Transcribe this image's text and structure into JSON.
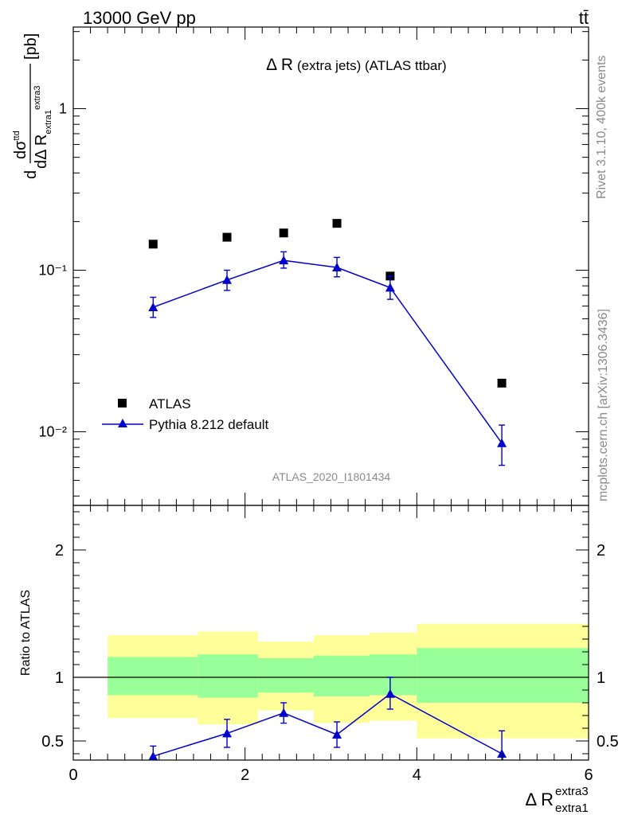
{
  "header": {
    "energy_label": "13000 GeV pp",
    "process_label": "tt̄",
    "rivet_label": "Rivet 3.1.10,  400k events",
    "mcplots_label": "mcplots.cern.ch [arXiv:1306.3436]",
    "analysis_id": "ATLAS_2020_I1801434"
  },
  "chart_data": [
    {
      "type": "scatter",
      "panel": "main",
      "title_main": "Δ R",
      "title_sub": "(extra jets) (ATLAS ttbar)",
      "ylabel": "dσ/dΔ R extra1 extra3 [pb]",
      "yscale": "log",
      "xlim": [
        0,
        6
      ],
      "ylim": [
        0.0035,
        3.2
      ],
      "y_tick_labels": [
        "10⁻²",
        "10⁻¹",
        "1"
      ],
      "legend_position": "bottom-left",
      "series": [
        {
          "name": "ATLAS",
          "marker": "square",
          "color": "#000000",
          "x": [
            0.93,
            1.79,
            2.45,
            3.07,
            3.69,
            4.99
          ],
          "y": [
            0.145,
            0.16,
            0.17,
            0.195,
            0.092,
            0.02
          ]
        },
        {
          "name": "Pythia 8.212 default",
          "marker": "triangle",
          "line": true,
          "color": "#0000cc",
          "x": [
            0.93,
            1.79,
            2.45,
            3.07,
            3.69,
            4.99
          ],
          "y": [
            0.059,
            0.087,
            0.115,
            0.104,
            0.078,
            0.0085
          ],
          "y_low": [
            0.051,
            0.075,
            0.103,
            0.091,
            0.066,
            0.0062
          ],
          "y_high": [
            0.068,
            0.1,
            0.13,
            0.12,
            0.092,
            0.011
          ]
        }
      ]
    },
    {
      "type": "scatter",
      "panel": "ratio",
      "ylabel": "Ratio to ATLAS",
      "xlabel": "Δ R",
      "xlabel_sup": "extra3",
      "xlabel_sub": "extra1",
      "xlim": [
        0,
        6
      ],
      "ylim": [
        0.35,
        2.35
      ],
      "x_tick_labels": [
        "0",
        "2",
        "4",
        "6"
      ],
      "y_tick_labels": [
        "0.5",
        "1",
        "2"
      ],
      "reference_line": 1,
      "bands": [
        {
          "x_lo": 0.4,
          "x_hi": 1.45,
          "inner": [
            0.86,
            1.16
          ],
          "outer": [
            0.68,
            1.33
          ]
        },
        {
          "x_lo": 1.45,
          "x_hi": 2.15,
          "inner": [
            0.84,
            1.18
          ],
          "outer": [
            0.63,
            1.36
          ]
        },
        {
          "x_lo": 2.15,
          "x_hi": 2.8,
          "inner": [
            0.88,
            1.15
          ],
          "outer": [
            0.74,
            1.28
          ]
        },
        {
          "x_lo": 2.8,
          "x_hi": 3.45,
          "inner": [
            0.85,
            1.17
          ],
          "outer": [
            0.64,
            1.33
          ]
        },
        {
          "x_lo": 3.45,
          "x_hi": 4.0,
          "inner": [
            0.86,
            1.18
          ],
          "outer": [
            0.66,
            1.35
          ]
        },
        {
          "x_lo": 4.0,
          "x_hi": 6.0,
          "inner": [
            0.8,
            1.23
          ],
          "outer": [
            0.52,
            1.42
          ]
        }
      ],
      "series": [
        {
          "name": "Pythia 8.212 default",
          "color": "#0000cc",
          "x": [
            0.93,
            1.79,
            2.45,
            3.07,
            3.69,
            4.99
          ],
          "y": [
            0.38,
            0.56,
            0.72,
            0.55,
            0.87,
            0.4
          ],
          "y_low": [
            0.31,
            0.45,
            0.64,
            0.45,
            0.75,
            0.3
          ],
          "y_high": [
            0.46,
            0.67,
            0.8,
            0.65,
            1.0,
            0.58
          ]
        }
      ]
    }
  ]
}
